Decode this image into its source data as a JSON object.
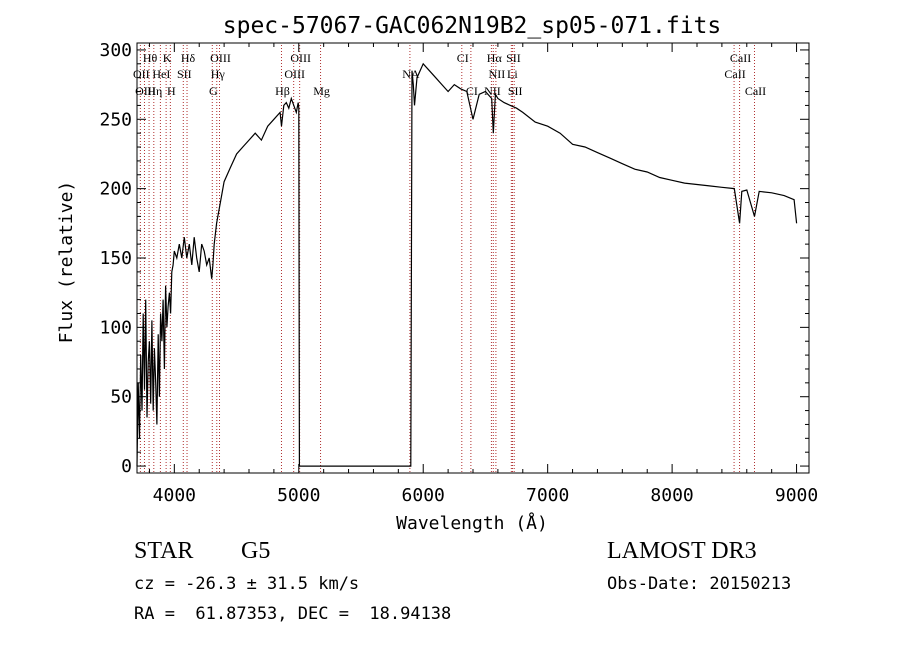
{
  "chart_data": {
    "type": "line",
    "title": "spec-57067-GAC062N19B2_sp05-071.fits",
    "xlabel": "Wavelength (Å)",
    "ylabel": "Flux (relative)",
    "xlim": [
      3700,
      9100
    ],
    "ylim": [
      -5,
      305
    ],
    "xticks": [
      4000,
      5000,
      6000,
      7000,
      8000,
      9000
    ],
    "yticks": [
      0,
      50,
      100,
      150,
      200,
      250,
      300
    ],
    "series": [
      {
        "name": "spectrum",
        "x": [
          3700,
          3710,
          3720,
          3730,
          3740,
          3750,
          3760,
          3770,
          3780,
          3790,
          3800,
          3810,
          3820,
          3830,
          3840,
          3850,
          3860,
          3870,
          3880,
          3890,
          3900,
          3910,
          3920,
          3930,
          3940,
          3950,
          3960,
          3970,
          3980,
          3990,
          4000,
          4020,
          4040,
          4060,
          4080,
          4100,
          4120,
          4140,
          4160,
          4180,
          4200,
          4220,
          4240,
          4260,
          4280,
          4300,
          4310,
          4320,
          4340,
          4360,
          4380,
          4400,
          4450,
          4500,
          4550,
          4600,
          4650,
          4700,
          4750,
          4800,
          4850,
          4861,
          4880,
          4900,
          4920,
          4940,
          4960,
          4980,
          4995,
          5000,
          5005,
          5020,
          5900,
          5910,
          5920,
          5930,
          5950,
          6000,
          6050,
          6100,
          6150,
          6200,
          6250,
          6300,
          6350,
          6400,
          6450,
          6500,
          6550,
          6563,
          6580,
          6600,
          6650,
          6700,
          6750,
          6800,
          6900,
          7000,
          7100,
          7200,
          7300,
          7400,
          7500,
          7600,
          7700,
          7800,
          7900,
          8000,
          8100,
          8200,
          8300,
          8400,
          8500,
          8542,
          8560,
          8600,
          8662,
          8700,
          8800,
          8900,
          8980,
          9000
        ],
        "y": [
          0,
          60,
          20,
          80,
          40,
          110,
          55,
          120,
          35,
          75,
          90,
          45,
          105,
          40,
          85,
          60,
          30,
          95,
          50,
          110,
          90,
          120,
          70,
          130,
          100,
          115,
          125,
          110,
          140,
          145,
          155,
          150,
          160,
          150,
          165,
          150,
          160,
          145,
          165,
          150,
          140,
          160,
          155,
          145,
          150,
          135,
          145,
          160,
          175,
          185,
          195,
          205,
          215,
          225,
          230,
          235,
          240,
          235,
          245,
          250,
          255,
          245,
          260,
          262,
          258,
          265,
          260,
          255,
          262,
          258,
          0,
          0,
          0,
          285,
          275,
          260,
          280,
          290,
          285,
          280,
          275,
          270,
          275,
          272,
          270,
          250,
          268,
          270,
          265,
          240,
          268,
          265,
          262,
          260,
          258,
          255,
          248,
          245,
          240,
          232,
          230,
          226,
          222,
          218,
          214,
          212,
          208,
          206,
          204,
          203,
          202,
          201,
          200,
          175,
          198,
          199,
          180,
          198,
          197,
          195,
          192,
          175
        ],
        "data_points_note": "approximate continuum read off the plot"
      }
    ],
    "line_markers": [
      {
        "label": "Hθ",
        "wavelength": 3797,
        "row": 1
      },
      {
        "label": "K",
        "wavelength": 3934,
        "row": 1
      },
      {
        "label": "Hδ",
        "wavelength": 4102,
        "row": 1
      },
      {
        "label": "OIII",
        "wavelength": 4363,
        "row": 1
      },
      {
        "label": "OIII",
        "wavelength": 5007,
        "row": 1
      },
      {
        "label": "CI",
        "wavelength": 6310,
        "row": 1
      },
      {
        "label": "Hα",
        "wavelength": 6563,
        "row": 1
      },
      {
        "label": "SII",
        "wavelength": 6717,
        "row": 1
      },
      {
        "label": "CaII",
        "wavelength": 8542,
        "row": 1
      },
      {
        "label": "OII",
        "wavelength": 3727,
        "row": 2
      },
      {
        "label": "HeI",
        "wavelength": 3888,
        "row": 2
      },
      {
        "label": "SII",
        "wavelength": 4072,
        "row": 2
      },
      {
        "label": "Hγ",
        "wavelength": 4341,
        "row": 2
      },
      {
        "label": "OIII",
        "wavelength": 4959,
        "row": 2
      },
      {
        "label": "NA",
        "wavelength": 5893,
        "row": 2
      },
      {
        "label": "NII",
        "wavelength": 6584,
        "row": 2
      },
      {
        "label": "Li",
        "wavelength": 6708,
        "row": 2
      },
      {
        "label": "CaII",
        "wavelength": 8498,
        "row": 2
      },
      {
        "label": "OIII",
        "wavelength": 3760,
        "row": 3
      },
      {
        "label": "Hη",
        "wavelength": 3835,
        "row": 3
      },
      {
        "label": "H",
        "wavelength": 3968,
        "row": 3
      },
      {
        "label": "G",
        "wavelength": 4305,
        "row": 3
      },
      {
        "label": "Hβ",
        "wavelength": 4861,
        "row": 3
      },
      {
        "label": "Mg",
        "wavelength": 5175,
        "row": 3
      },
      {
        "label": "CI",
        "wavelength": 6383,
        "row": 3
      },
      {
        "label": "NII",
        "wavelength": 6548,
        "row": 3
      },
      {
        "label": "SII",
        "wavelength": 6731,
        "row": 3
      },
      {
        "label": "CaII",
        "wavelength": 8662,
        "row": 3
      }
    ]
  },
  "info": {
    "object_class": "STAR",
    "subclass": "G5",
    "survey": "LAMOST DR3",
    "redshift_line": "cz = -26.3 ± 31.5 km/s",
    "obs_date_line": "Obs-Date: 20150213",
    "coords_line": "RA =  61.87353, DEC =  18.94138"
  }
}
